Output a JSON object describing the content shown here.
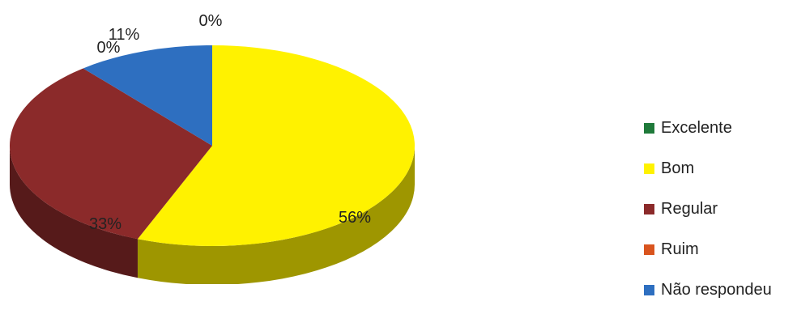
{
  "chart_data": {
    "type": "pie",
    "categories": [
      "Excelente",
      "Bom",
      "Regular",
      "Ruim",
      "Não respondeu"
    ],
    "values": [
      0,
      56,
      33,
      0,
      11
    ],
    "labels": [
      "0%",
      "56%",
      "33%",
      "0%",
      "11%"
    ],
    "colors": [
      "#1f7a3a",
      "#fff200",
      "#8b2a2a",
      "#d9541e",
      "#2e6fc0"
    ],
    "legend_position": "right",
    "style": "3d-pie"
  }
}
